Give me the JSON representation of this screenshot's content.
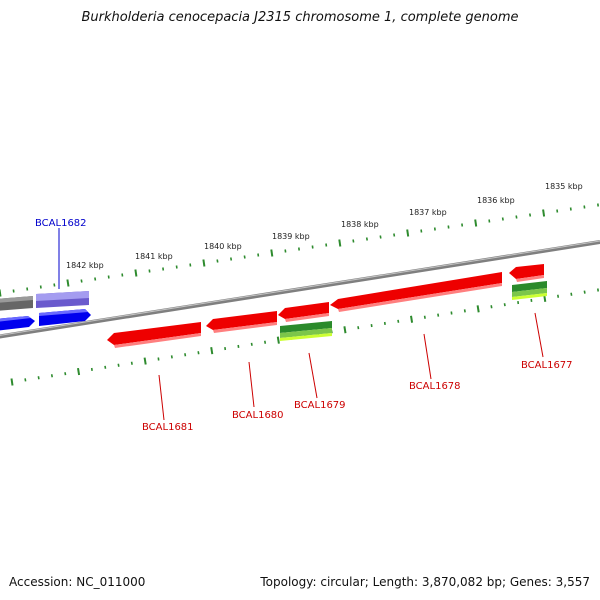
{
  "title": "Burkholderia cenocepacia J2315 chromosome 1, complete genome",
  "footer": {
    "accession": "Accession: NC_011000",
    "summary": "Topology: circular; Length: 3,870,082 bp; Genes: 3,557"
  },
  "colors": {
    "backbone": "#7f7f7f",
    "tick": "#2e8b2e",
    "gene_forward_highlight": "#3f3fdd",
    "gene_highlight_label": "#0000cc",
    "gene_reverse": "#ee0000",
    "gene_label": "#cc0000",
    "feature_green": "#2b8a2b",
    "feature_lime": "#ccff33",
    "gene_other": "#666666"
  },
  "kbp_labels": [
    "1842 kbp",
    "1841 kbp",
    "1840 kbp",
    "1839 kbp",
    "1838 kbp",
    "1837 kbp",
    "1836 kbp",
    "1835 kbp"
  ],
  "genes": [
    {
      "name": "BCAL1682",
      "strand": "+"
    },
    {
      "name": "BCAL1681",
      "strand": "-"
    },
    {
      "name": "BCAL1680",
      "strand": "-"
    },
    {
      "name": "BCAL1679",
      "strand": "-"
    },
    {
      "name": "BCAL1678",
      "strand": "-"
    },
    {
      "name": "BCAL1677",
      "strand": "-"
    }
  ]
}
